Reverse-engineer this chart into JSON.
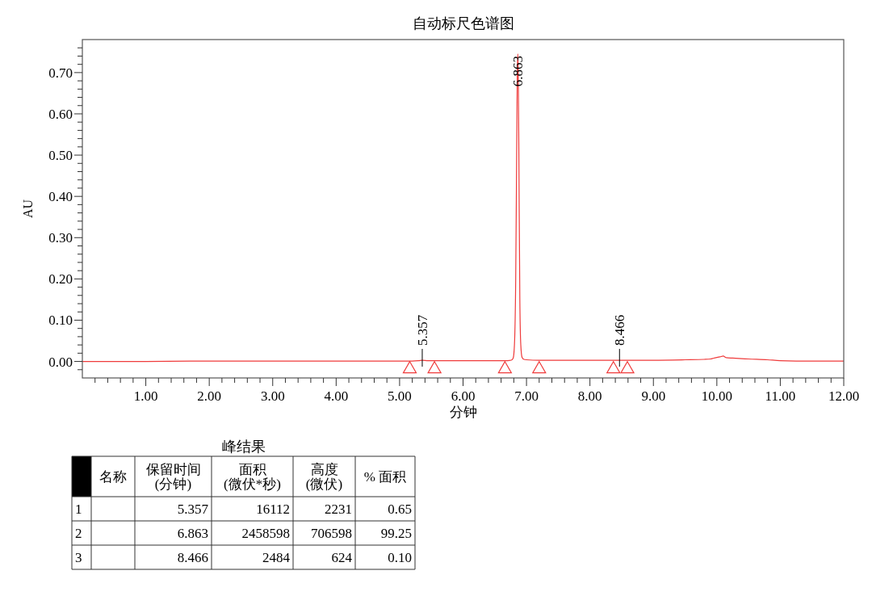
{
  "chart_data": [
    {
      "type": "line",
      "title": "自动标尺色谱图",
      "xlabel": "分钟",
      "ylabel": "AU",
      "xlim": [
        0,
        12
      ],
      "ylim": [
        -0.04,
        0.78
      ],
      "xticks": [
        {
          "value": 0.2,
          "label": null
        },
        {
          "value": 0.4,
          "label": null
        },
        {
          "value": 0.6,
          "label": null
        },
        {
          "value": 0.8,
          "label": null
        },
        {
          "value": 1,
          "label": "1.00"
        },
        {
          "value": 1.2,
          "label": null
        },
        {
          "value": 1.4,
          "label": null
        },
        {
          "value": 1.6,
          "label": null
        },
        {
          "value": 1.8,
          "label": null
        },
        {
          "value": 2,
          "label": "2.00"
        },
        {
          "value": 2.2,
          "label": null
        },
        {
          "value": 2.4,
          "label": null
        },
        {
          "value": 2.6,
          "label": null
        },
        {
          "value": 2.8,
          "label": null
        },
        {
          "value": 3,
          "label": "3.00"
        },
        {
          "value": 3.2,
          "label": null
        },
        {
          "value": 3.4,
          "label": null
        },
        {
          "value": 3.6,
          "label": null
        },
        {
          "value": 3.8,
          "label": null
        },
        {
          "value": 4,
          "label": "4.00"
        },
        {
          "value": 4.2,
          "label": null
        },
        {
          "value": 4.4,
          "label": null
        },
        {
          "value": 4.6,
          "label": null
        },
        {
          "value": 4.8,
          "label": null
        },
        {
          "value": 5,
          "label": "5.00"
        },
        {
          "value": 5.2,
          "label": null
        },
        {
          "value": 5.4,
          "label": null
        },
        {
          "value": 5.6,
          "label": null
        },
        {
          "value": 5.8,
          "label": null
        },
        {
          "value": 6,
          "label": "6.00"
        },
        {
          "value": 6.2,
          "label": null
        },
        {
          "value": 6.4,
          "label": null
        },
        {
          "value": 6.6,
          "label": null
        },
        {
          "value": 6.8,
          "label": null
        },
        {
          "value": 7,
          "label": "7.00"
        },
        {
          "value": 7.2,
          "label": null
        },
        {
          "value": 7.4,
          "label": null
        },
        {
          "value": 7.6,
          "label": null
        },
        {
          "value": 7.8,
          "label": null
        },
        {
          "value": 8,
          "label": "8.00"
        },
        {
          "value": 8.2,
          "label": null
        },
        {
          "value": 8.4,
          "label": null
        },
        {
          "value": 8.6,
          "label": null
        },
        {
          "value": 8.8,
          "label": null
        },
        {
          "value": 9,
          "label": "9.00"
        },
        {
          "value": 9.2,
          "label": null
        },
        {
          "value": 9.4,
          "label": null
        },
        {
          "value": 9.6,
          "label": null
        },
        {
          "value": 9.8,
          "label": null
        },
        {
          "value": 10,
          "label": "10.00"
        },
        {
          "value": 10.2,
          "label": null
        },
        {
          "value": 10.4,
          "label": null
        },
        {
          "value": 10.6,
          "label": null
        },
        {
          "value": 10.8,
          "label": null
        },
        {
          "value": 11,
          "label": "11.00"
        },
        {
          "value": 11.2,
          "label": null
        },
        {
          "value": 11.4,
          "label": null
        },
        {
          "value": 11.6,
          "label": null
        },
        {
          "value": 11.8,
          "label": null
        },
        {
          "value": 12,
          "label": "12.00"
        }
      ],
      "yticks": [
        {
          "value": -0.02,
          "label": null
        },
        {
          "value": 0,
          "label": "0.00"
        },
        {
          "value": 0.02,
          "label": null
        },
        {
          "value": 0.04,
          "label": null
        },
        {
          "value": 0.06,
          "label": null
        },
        {
          "value": 0.08,
          "label": null
        },
        {
          "value": 0.1,
          "label": "0.10"
        },
        {
          "value": 0.12,
          "label": null
        },
        {
          "value": 0.14,
          "label": null
        },
        {
          "value": 0.16,
          "label": null
        },
        {
          "value": 0.18,
          "label": null
        },
        {
          "value": 0.2,
          "label": "0.20"
        },
        {
          "value": 0.22,
          "label": null
        },
        {
          "value": 0.24,
          "label": null
        },
        {
          "value": 0.26,
          "label": null
        },
        {
          "value": 0.28,
          "label": null
        },
        {
          "value": 0.3,
          "label": "0.30"
        },
        {
          "value": 0.32,
          "label": null
        },
        {
          "value": 0.34,
          "label": null
        },
        {
          "value": 0.36,
          "label": null
        },
        {
          "value": 0.38,
          "label": null
        },
        {
          "value": 0.4,
          "label": "0.40"
        },
        {
          "value": 0.42,
          "label": null
        },
        {
          "value": 0.44,
          "label": null
        },
        {
          "value": 0.46,
          "label": null
        },
        {
          "value": 0.48,
          "label": null
        },
        {
          "value": 0.5,
          "label": "0.50"
        },
        {
          "value": 0.52,
          "label": null
        },
        {
          "value": 0.54,
          "label": null
        },
        {
          "value": 0.56,
          "label": null
        },
        {
          "value": 0.58,
          "label": null
        },
        {
          "value": 0.6,
          "label": "0.60"
        },
        {
          "value": 0.62,
          "label": null
        },
        {
          "value": 0.64,
          "label": null
        },
        {
          "value": 0.66,
          "label": null
        },
        {
          "value": 0.68,
          "label": null
        },
        {
          "value": 0.7,
          "label": "0.70"
        },
        {
          "value": 0.72,
          "label": null
        },
        {
          "value": 0.74,
          "label": null
        },
        {
          "value": 0.76,
          "label": null
        }
      ],
      "series": [
        {
          "type": "line",
          "color": "#ef3b3b",
          "x": [
            0,
            1,
            1.7,
            2,
            3,
            4,
            5,
            5.2,
            5.3,
            5.357,
            5.45,
            5.6,
            6,
            6.5,
            6.7,
            6.76,
            6.79,
            6.81,
            6.83,
            6.845,
            6.855,
            6.863,
            6.87,
            6.88,
            6.895,
            6.91,
            6.93,
            6.96,
            7.0,
            7.2,
            8,
            8.4,
            8.466,
            8.6,
            9,
            9.5,
            9.8,
            9.9,
            9.95,
            10.05,
            10.1,
            10.15,
            10.25,
            10.5,
            10.8,
            11,
            11.5,
            12
          ],
          "values": [
            0,
            0,
            0.001,
            0.001,
            0.001,
            0.001,
            0.001,
            0.001,
            0.002,
            0.003,
            0.002,
            0.002,
            0.002,
            0.002,
            0.002,
            0.003,
            0.008,
            0.04,
            0.2,
            0.5,
            0.7,
            0.745,
            0.7,
            0.5,
            0.15,
            0.04,
            0.01,
            0.005,
            0.004,
            0.003,
            0.003,
            0.003,
            0.003,
            0.003,
            0.003,
            0.004,
            0.005,
            0.006,
            0.008,
            0.011,
            0.013,
            0.009,
            0.008,
            0.006,
            0.004,
            0.002,
            0.001,
            0.001
          ]
        },
        {
          "type": "scatter",
          "color": "#ef3b3b",
          "marker": "triangle",
          "x": [
            5.16,
            5.55,
            6.66,
            7.2,
            8.37,
            8.59
          ],
          "values": [
            -0.014,
            -0.014,
            -0.014,
            -0.014,
            -0.014,
            -0.014
          ]
        }
      ],
      "annotations": [
        {
          "text": "5.357",
          "x": 5.357,
          "y": 0.003
        },
        {
          "text": "6.863",
          "x": 6.863,
          "y": 0.745
        },
        {
          "text": "8.466",
          "x": 8.466,
          "y": 0.003
        }
      ]
    },
    {
      "type": "other",
      "title": "峰结果",
      "categories": [
        "名称",
        "保留时间\n(分钟)",
        "面积\n(微伏*秒)",
        "高度\n(微伏)",
        "% 面积"
      ],
      "y_categories": [
        "1",
        "2",
        "3"
      ],
      "cell_labels": [
        [
          null,
          "5.357",
          "16112",
          "2231",
          "0.65"
        ],
        [
          null,
          "6.863",
          "2458598",
          "706598",
          "99.25"
        ],
        [
          null,
          "8.466",
          "2484",
          "624",
          "0.10"
        ]
      ]
    }
  ]
}
